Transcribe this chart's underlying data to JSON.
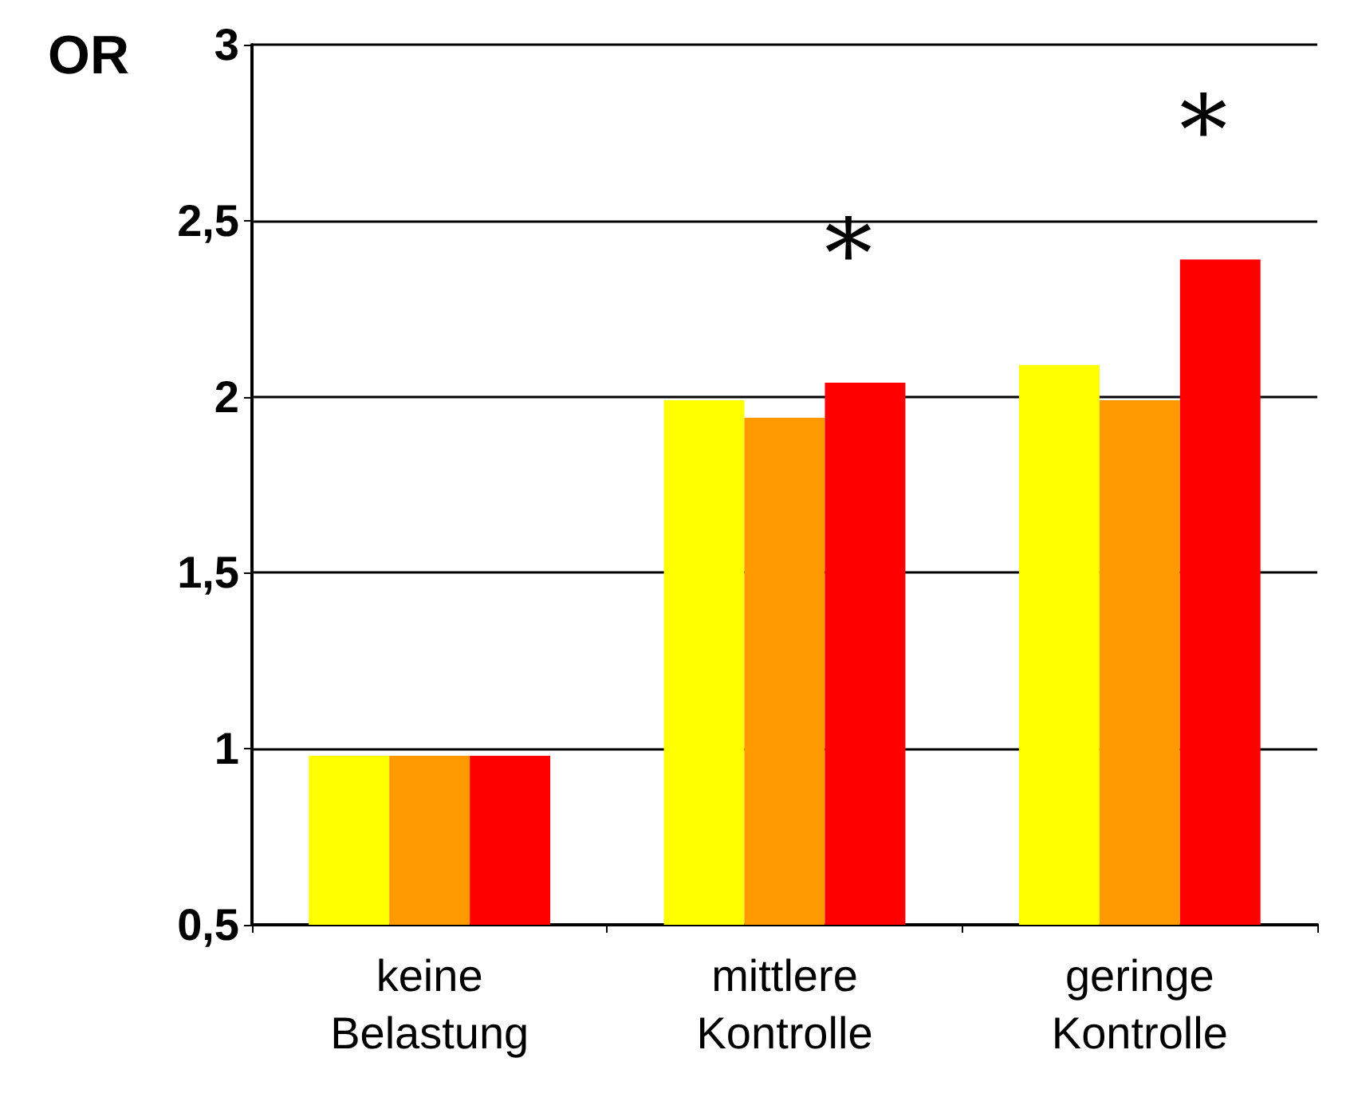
{
  "chart_data": {
    "type": "bar",
    "ylabel": "OR",
    "categories": [
      "keine\nBelastung",
      "mittlere\nKontrolle",
      "geringe\nKontrolle"
    ],
    "series": [
      {
        "color": "#ffff00",
        "values": [
          0.98,
          1.99,
          2.09
        ]
      },
      {
        "color": "#ff9900",
        "values": [
          0.98,
          1.94,
          1.99
        ]
      },
      {
        "color": "#ff0000",
        "values": [
          0.98,
          2.04,
          2.39
        ]
      }
    ],
    "ylim": [
      0.5,
      3
    ],
    "yticks": [
      {
        "value": 0.5,
        "label": "0,5"
      },
      1,
      {
        "value": 1.5,
        "label": "1,5"
      },
      2,
      {
        "value": 2.5,
        "label": "2,5"
      },
      3
    ],
    "grid": "y",
    "annotations": [
      "*",
      "*"
    ]
  }
}
